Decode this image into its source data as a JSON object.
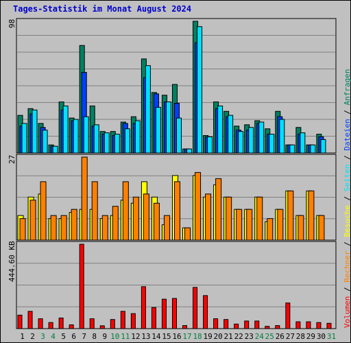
{
  "title": "Tages-Statistik im Monat August 2024",
  "colors": {
    "anfragen": "#008060",
    "dateien": "#0040ff",
    "seiten": "#00e0ff",
    "besuche": "#ffff00",
    "rechner": "#ff8000",
    "volumen": "#ff0000",
    "plot_bg": "#c0c0c0",
    "grid": "#808080",
    "weekend_day": "#008040",
    "weekday": "#000000"
  },
  "legend": {
    "items": [
      {
        "label": "Volumen",
        "color": "#ff0000"
      },
      {
        "label": "Rechner",
        "color": "#ff8000"
      },
      {
        "label": "Besuche",
        "color": "#ffff00"
      },
      {
        "label": "Seiten",
        "color": "#00e0ff"
      },
      {
        "label": "Dateien",
        "color": "#0040ff"
      },
      {
        "label": "Anfragen",
        "color": "#008060"
      }
    ],
    "separator": " / "
  },
  "chart_data": [
    {
      "type": "bar",
      "panel": "top",
      "axis_label": "98",
      "ylim": [
        0,
        98
      ],
      "categories": [
        "1",
        "2",
        "3",
        "4",
        "5",
        "6",
        "7",
        "8",
        "9",
        "10",
        "11",
        "12",
        "13",
        "14",
        "15",
        "16",
        "17",
        "18",
        "19",
        "20",
        "21",
        "22",
        "23",
        "24",
        "25",
        "26",
        "27",
        "28",
        "29",
        "30",
        "31"
      ],
      "weekend_days": [
        "3",
        "4",
        "10",
        "11",
        "17",
        "18",
        "24",
        "25",
        "31"
      ],
      "series": [
        {
          "name": "Anfragen",
          "values": [
            28,
            33,
            22,
            6,
            38,
            26,
            80,
            35,
            16,
            16,
            23,
            27,
            70,
            45,
            43,
            51,
            3,
            98,
            13,
            38,
            31,
            20,
            21,
            24,
            18,
            31,
            6,
            19,
            6,
            14,
            0
          ],
          "color": "#008060"
        },
        {
          "name": "Dateien",
          "values": [
            20,
            29,
            19,
            5,
            32,
            24,
            60,
            20,
            14,
            13,
            22,
            22,
            56,
            44,
            38,
            37,
            3,
            82,
            12,
            33,
            27,
            17,
            17,
            22,
            14,
            27,
            6,
            14,
            6,
            12,
            0
          ],
          "color": "#0040ff"
        },
        {
          "name": "Seiten",
          "values": [
            22,
            32,
            17,
            5,
            35,
            25,
            27,
            21,
            15,
            14,
            18,
            24,
            65,
            34,
            38,
            26,
            3,
            94,
            12,
            35,
            28,
            16,
            19,
            23,
            14,
            25,
            6,
            15,
            6,
            10,
            0
          ],
          "color": "#00e0ff"
        }
      ]
    },
    {
      "type": "bar",
      "panel": "middle",
      "axis_label": "27",
      "ylim": [
        0,
        27
      ],
      "categories": [
        "1",
        "2",
        "3",
        "4",
        "5",
        "6",
        "7",
        "8",
        "9",
        "10",
        "11",
        "12",
        "13",
        "14",
        "15",
        "16",
        "17",
        "18",
        "19",
        "20",
        "21",
        "22",
        "23",
        "24",
        "25",
        "26",
        "27",
        "28",
        "29",
        "30",
        "31"
      ],
      "series": [
        {
          "name": "Besuche",
          "values": [
            8,
            14,
            15,
            7,
            7,
            9,
            10,
            10,
            7,
            8,
            13,
            12,
            19,
            14,
            5,
            21,
            4,
            21,
            14,
            18,
            14,
            10,
            10,
            14,
            6,
            10,
            16,
            8,
            16,
            8,
            0
          ],
          "color": "#ffff00"
        },
        {
          "name": "Rechner",
          "values": [
            7,
            13,
            19,
            8,
            8,
            10,
            27,
            19,
            8,
            11,
            19,
            14,
            15,
            12,
            8,
            19,
            4,
            22,
            15,
            20,
            14,
            10,
            10,
            14,
            7,
            10,
            16,
            8,
            16,
            8,
            0
          ],
          "color": "#ff8000"
        }
      ]
    },
    {
      "type": "bar",
      "panel": "bottom",
      "axis_label": "444.60 KB",
      "ylim": [
        0,
        444.6
      ],
      "categories": [
        "1",
        "2",
        "3",
        "4",
        "5",
        "6",
        "7",
        "8",
        "9",
        "10",
        "11",
        "12",
        "13",
        "14",
        "15",
        "16",
        "17",
        "18",
        "19",
        "20",
        "21",
        "22",
        "23",
        "24",
        "25",
        "26",
        "27",
        "28",
        "29",
        "30",
        "31"
      ],
      "series": [
        {
          "name": "Volumen",
          "values": [
            71,
            91,
            52,
            32,
            56,
            20,
            444.6,
            52,
            15,
            48,
            91,
            79,
            221,
            111,
            155,
            159,
            16,
            217,
            174,
            52,
            48,
            24,
            40,
            40,
            12,
            16,
            135,
            36,
            36,
            32,
            28
          ],
          "color": "#ff0000"
        }
      ]
    }
  ]
}
